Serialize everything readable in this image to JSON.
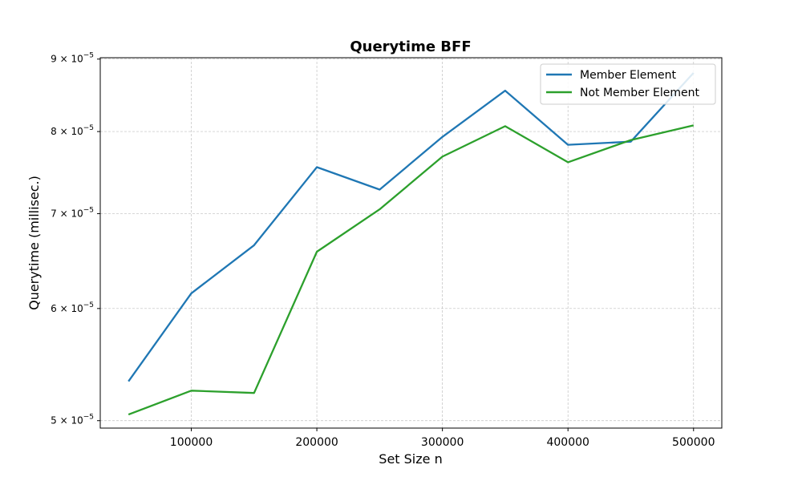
{
  "chart_data": {
    "type": "line",
    "title": "Querytime BFF",
    "xlabel": "Set Size n",
    "ylabel": "Querytime (millisec.)",
    "yscale": "log",
    "xlim": [
      27500,
      522500
    ],
    "ylim": [
      4.94e-05,
      9.02e-05
    ],
    "grid": true,
    "legend_position": "top-right",
    "x": [
      50000,
      100000,
      150000,
      200000,
      250000,
      300000,
      350000,
      400000,
      450000,
      500000
    ],
    "x_ticks": [
      {
        "value": 100000,
        "label": "100000"
      },
      {
        "value": 200000,
        "label": "200000"
      },
      {
        "value": 300000,
        "label": "300000"
      },
      {
        "value": 400000,
        "label": "400000"
      },
      {
        "value": 500000,
        "label": "500000"
      }
    ],
    "y_ticks": [
      {
        "value": 5e-05,
        "mantissa": "5",
        "exp": "−5"
      },
      {
        "value": 6e-05,
        "mantissa": "6",
        "exp": "−5"
      },
      {
        "value": 7e-05,
        "mantissa": "7",
        "exp": "−5"
      },
      {
        "value": 8e-05,
        "mantissa": "8",
        "exp": "−5"
      },
      {
        "value": 9e-05,
        "mantissa": "9",
        "exp": "−5"
      }
    ],
    "series": [
      {
        "name": "Member Element",
        "color": "#1f77b4",
        "values": [
          5.33e-05,
          6.15e-05,
          6.65e-05,
          7.55e-05,
          7.28e-05,
          7.93e-05,
          8.55e-05,
          7.83e-05,
          7.87e-05,
          8.8e-05
        ]
      },
      {
        "name": "Not Member Element",
        "color": "#2ca02c",
        "values": [
          5.05e-05,
          5.25e-05,
          5.23e-05,
          6.58e-05,
          7.05e-05,
          7.68e-05,
          8.07e-05,
          7.61e-05,
          7.89e-05,
          8.08e-05
        ]
      }
    ]
  }
}
